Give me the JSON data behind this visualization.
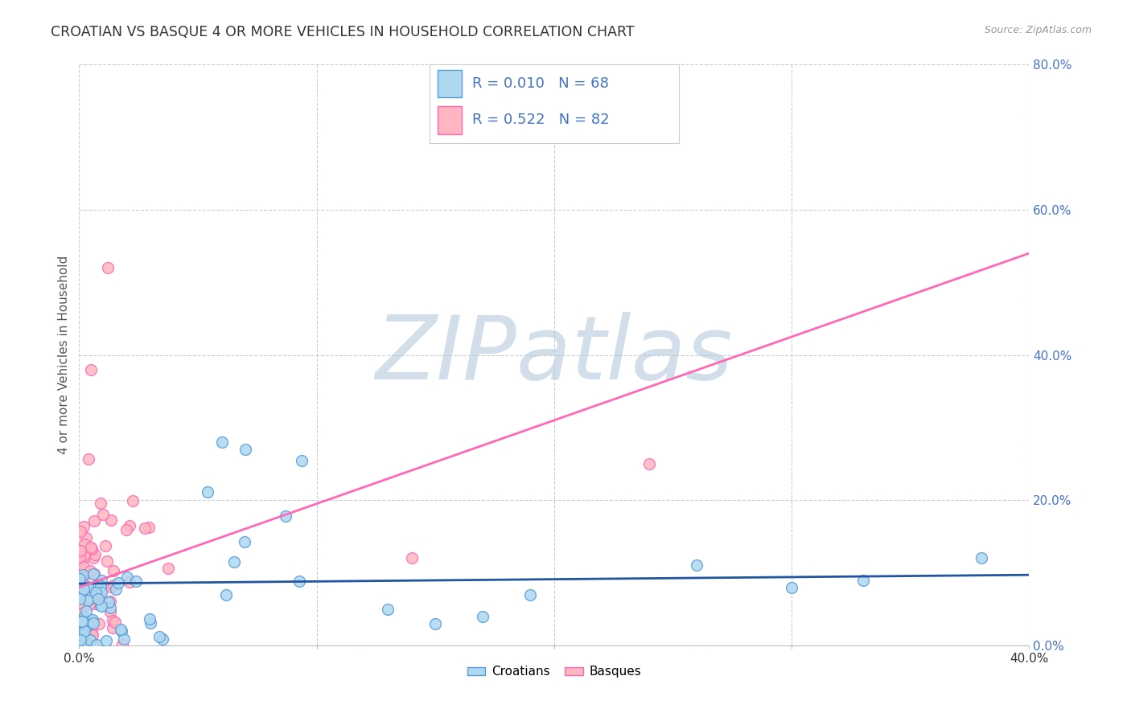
{
  "title": "CROATIAN VS BASQUE 4 OR MORE VEHICLES IN HOUSEHOLD CORRELATION CHART",
  "source": "Source: ZipAtlas.com",
  "ylabel": "4 or more Vehicles in Household",
  "xlim": [
    0.0,
    0.42
  ],
  "ylim": [
    -0.02,
    0.88
  ],
  "plot_xlim": [
    0.0,
    0.4
  ],
  "plot_ylim": [
    0.0,
    0.8
  ],
  "xticks": [
    0.0,
    0.4
  ],
  "xtick_labels": [
    "0.0%",
    "40.0%"
  ],
  "yticks": [
    0.0,
    0.2,
    0.4,
    0.6,
    0.8
  ],
  "ytick_labels": [
    "0.0%",
    "20.0%",
    "40.0%",
    "60.0%",
    "80.0%"
  ],
  "croatian_fill_color": "#ADD8F0",
  "croatian_edge_color": "#5B9BD5",
  "basque_fill_color": "#FFB6C1",
  "basque_edge_color": "#FF69B4",
  "croatian_line_color": "#2155A0",
  "basque_line_color": "#FF69B4",
  "legend_text_color": "#4472C4",
  "R_croatian": 0.01,
  "N_croatian": 68,
  "R_basque": 0.522,
  "N_basque": 82,
  "watermark": "ZIPatlas",
  "watermark_color_r": 180,
  "watermark_color_g": 200,
  "watermark_color_b": 220,
  "background_color": "#FFFFFF",
  "grid_color": "#CCCCCC",
  "right_ytick_color": "#4472C4",
  "croatian_line_intercept": 0.085,
  "croatian_line_slope": 0.03,
  "basque_line_intercept": 0.08,
  "basque_line_slope": 1.15
}
